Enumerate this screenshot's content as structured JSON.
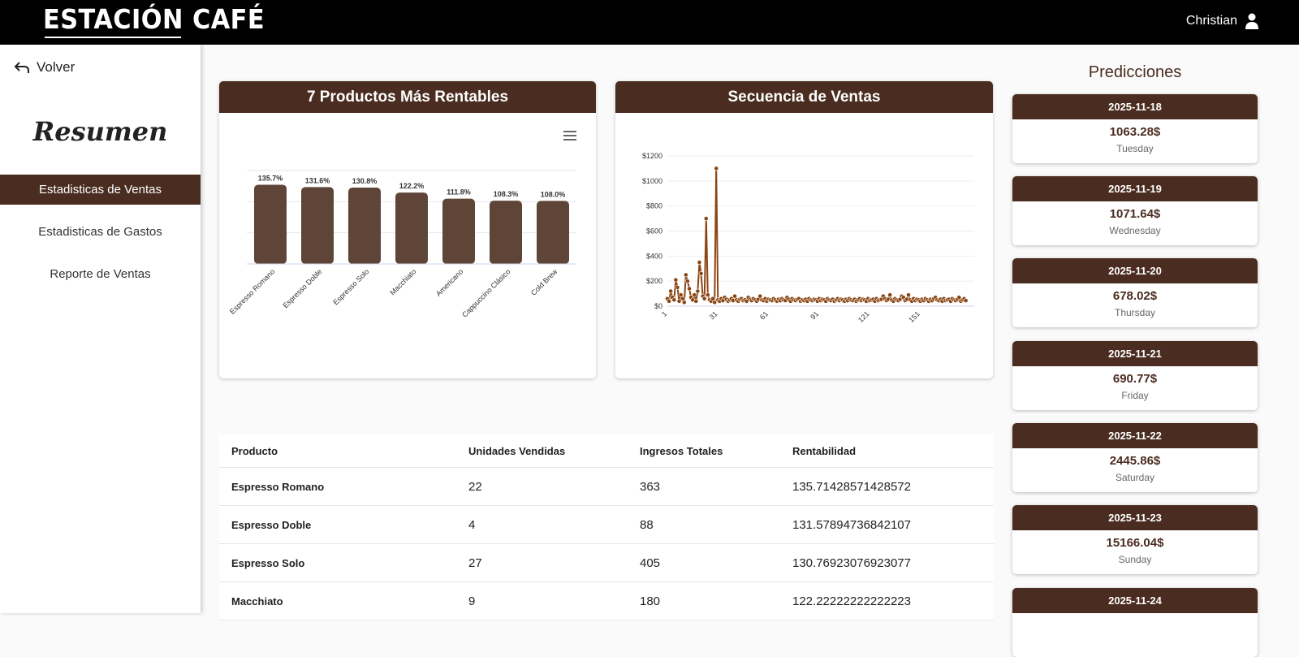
{
  "header": {
    "logo": "ESTACIÓN CAFÉ",
    "user_name": "Christian"
  },
  "sidebar": {
    "back_label": "Volver",
    "title": "Resumen",
    "items": [
      {
        "label": "Estadisticas de Ventas",
        "active": true
      },
      {
        "label": "Estadisticas de Gastos",
        "active": false
      },
      {
        "label": "Reporte de Ventas",
        "active": false
      }
    ]
  },
  "cards": {
    "bar_title": "7 Productos Más Rentables",
    "line_title": "Secuencia de Ventas"
  },
  "chart_data": [
    {
      "type": "bar",
      "title": "7 Productos Más Rentables",
      "categories": [
        "Espresso Romano",
        "Espresso Doble",
        "Espresso Solo",
        "Macchiato",
        "Americano",
        "Cappuccino Clásico",
        "Cold Brew"
      ],
      "values": [
        135.7,
        131.6,
        130.8,
        122.2,
        111.8,
        108.3,
        108.0
      ],
      "data_labels": [
        "135.7%",
        "131.6%",
        "130.8%",
        "122.2%",
        "111.8%",
        "108.3%",
        "108.0%"
      ],
      "ylim": [
        0,
        160
      ],
      "color": "#5e4538",
      "grid": true
    },
    {
      "type": "line",
      "title": "Secuencia de Ventas",
      "x_ticks": [
        "1",
        "31",
        "61",
        "91",
        "121",
        "151"
      ],
      "y_ticks": [
        "$0",
        "$200",
        "$400",
        "$600",
        "$800",
        "$1000",
        "$1200"
      ],
      "ylim": [
        0,
        1200
      ],
      "x_range": [
        1,
        183
      ],
      "color": "#8b4513",
      "grid": true,
      "values": [
        60,
        40,
        120,
        70,
        50,
        210,
        150,
        40,
        90,
        60,
        30,
        250,
        200,
        140,
        70,
        50,
        90,
        40,
        120,
        350,
        260,
        80,
        60,
        700,
        90,
        50,
        40,
        60,
        30,
        1100,
        50,
        40,
        60,
        45,
        70,
        55,
        40,
        50,
        60,
        45,
        80,
        50,
        40,
        55,
        60,
        45,
        50,
        40,
        70,
        55,
        45,
        60,
        50,
        40,
        55,
        80,
        50,
        45,
        60,
        40,
        55,
        50,
        45,
        60,
        50,
        40,
        55,
        45,
        60,
        50,
        45,
        70,
        55,
        40,
        60,
        50,
        45,
        55,
        60,
        40,
        50,
        45,
        55,
        40,
        60,
        50,
        45,
        55,
        50,
        40,
        60,
        45,
        55,
        50,
        40,
        60,
        50,
        45,
        55,
        40,
        50,
        60,
        45,
        55,
        50,
        40,
        55,
        45,
        60,
        50,
        45,
        55,
        40,
        50,
        60,
        45,
        55,
        50,
        40,
        60,
        45,
        50,
        55,
        40,
        60,
        45,
        50,
        55,
        80,
        60,
        45,
        55,
        90,
        50,
        40,
        60,
        50,
        45,
        55,
        80,
        70,
        45,
        55,
        90,
        50,
        40,
        60,
        45,
        55,
        50,
        40,
        55,
        45,
        60,
        50,
        40,
        55,
        45,
        60,
        70,
        50,
        45,
        55,
        40,
        60,
        45,
        50,
        55,
        40,
        60,
        50,
        45,
        55,
        70,
        40,
        50,
        60,
        45
      ]
    }
  ],
  "table": {
    "headers": [
      "Producto",
      "Unidades Vendidas",
      "Ingresos Totales",
      "Rentabilidad"
    ],
    "rows": [
      [
        "Espresso Romano",
        "22",
        "363",
        "135.71428571428572"
      ],
      [
        "Espresso Doble",
        "4",
        "88",
        "131.57894736842107"
      ],
      [
        "Espresso Solo",
        "27",
        "405",
        "130.76923076923077"
      ],
      [
        "Macchiato",
        "9",
        "180",
        "122.22222222222223"
      ]
    ]
  },
  "predictions": {
    "title": "Predicciones",
    "items": [
      {
        "date": "2025-11-18",
        "value": "1063.28$",
        "day": "Tuesday"
      },
      {
        "date": "2025-11-19",
        "value": "1071.64$",
        "day": "Wednesday"
      },
      {
        "date": "2025-11-20",
        "value": "678.02$",
        "day": "Thursday"
      },
      {
        "date": "2025-11-21",
        "value": "690.77$",
        "day": "Friday"
      },
      {
        "date": "2025-11-22",
        "value": "2445.86$",
        "day": "Saturday"
      },
      {
        "date": "2025-11-23",
        "value": "15166.04$",
        "day": "Sunday"
      },
      {
        "date": "2025-11-24",
        "value": "",
        "day": ""
      }
    ]
  }
}
